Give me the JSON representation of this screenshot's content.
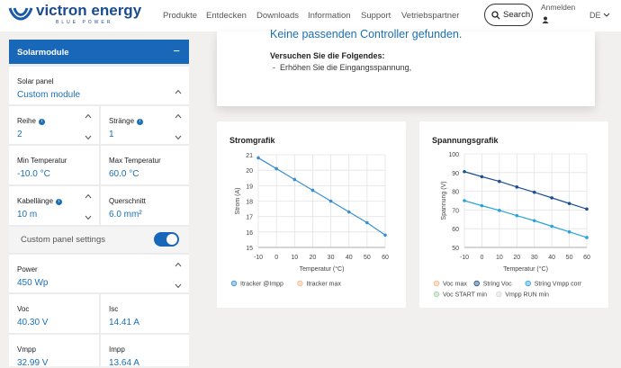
{
  "header": {
    "logo": "victron energy",
    "tagline": "BLUE POWER",
    "nav": [
      "Produkte",
      "Entdecken",
      "Downloads",
      "Information",
      "Support",
      "Vetriebspartner"
    ],
    "search": "Search",
    "login": "Anmelden",
    "language": "DE"
  },
  "sidebar": {
    "title": "Solarmodule",
    "fields": [
      {
        "label": "Solar panel",
        "value": "Custom module"
      },
      {
        "label": "Reihe",
        "value": "2"
      },
      {
        "label": "Stränge",
        "value": "1"
      },
      {
        "label": "Min Temperatur",
        "value": "-10.0 °C"
      },
      {
        "label": "Max Temperatur",
        "value": "60.0 °C"
      },
      {
        "label": "Kabellänge",
        "value": "10 m"
      },
      {
        "label": "Querschnitt",
        "value": "6.0 mm²"
      },
      {
        "label": "Power",
        "value": "450 Wp"
      },
      {
        "label": "Voc",
        "value": "40.30 V"
      },
      {
        "label": "Isc",
        "value": "14.41 A"
      },
      {
        "label": "Vmpp",
        "value": "32.99 V"
      },
      {
        "label": "Impp",
        "value": "13.64 A"
      }
    ],
    "toggle": "Custom panel settings"
  },
  "message": {
    "title": "Keine passenden Controller gefunden.",
    "subtitle": "Versuchen Sie die Folgendes:",
    "items": [
      "Erhöhen Sie die Eingangsspannung,"
    ]
  },
  "charts": [
    {
      "type": "line",
      "title": "Stromgrafik",
      "xlabel": "Temperatur (°C)",
      "ylabel": "Strom (A)",
      "x": [
        -10,
        0,
        10,
        20,
        30,
        40,
        50,
        60
      ],
      "xlim": [
        -10,
        60
      ],
      "xticks": [
        -10,
        0,
        10,
        20,
        30,
        40,
        50,
        60
      ],
      "ylim": [
        15,
        21
      ],
      "yticks": [
        15,
        16,
        17,
        18,
        19,
        20,
        21
      ],
      "grid": true,
      "series": [
        {
          "name": "Itracker @Impp",
          "color": "#3a8fd0",
          "values": [
            20.8,
            20.1,
            19.4,
            18.7,
            18.0,
            17.3,
            16.6,
            15.8
          ]
        },
        {
          "name": "Itracker max",
          "color": "#f5b98a",
          "values": [
            null,
            null,
            null,
            null,
            null,
            null,
            null,
            null
          ]
        }
      ]
    },
    {
      "type": "line",
      "title": "Spannungsgrafik",
      "xlabel": "Temperatur (°C)",
      "ylabel": "Spannung (V)",
      "x": [
        -10,
        0,
        10,
        20,
        30,
        40,
        50,
        60
      ],
      "xlim": [
        -10,
        60
      ],
      "xticks": [
        -10,
        0,
        10,
        20,
        30,
        40,
        50,
        60
      ],
      "ylim": [
        50,
        100
      ],
      "yticks": [
        50,
        60,
        70,
        80,
        90,
        100
      ],
      "grid": true,
      "series": [
        {
          "name": "Voc max",
          "color": "#f5b98a",
          "values": [
            null,
            null,
            null,
            null,
            null,
            null,
            null,
            null
          ]
        },
        {
          "name": "String Voc",
          "color": "#1c4f8f",
          "values": [
            90.5,
            87.8,
            85.3,
            82.3,
            79.5,
            76.5,
            73.5,
            70.5
          ]
        },
        {
          "name": "String Vmpp corr",
          "color": "#2aa3d8",
          "values": [
            75,
            72.3,
            69.8,
            67,
            64.3,
            61.3,
            58.3,
            55.3
          ]
        },
        {
          "name": "Voc START min",
          "color": "#9fd3a8",
          "values": [
            null,
            null,
            null,
            null,
            null,
            null,
            null,
            null
          ]
        },
        {
          "name": "Vmpp RUN min",
          "color": "#d8d8d8",
          "values": [
            null,
            null,
            null,
            null,
            null,
            null,
            null,
            null
          ]
        }
      ]
    }
  ]
}
